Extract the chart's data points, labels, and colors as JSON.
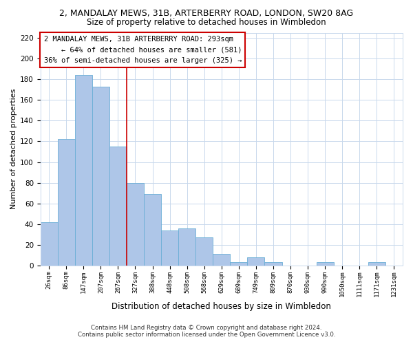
{
  "title": "2, MANDALAY MEWS, 31B, ARTERBERRY ROAD, LONDON, SW20 8AG",
  "subtitle": "Size of property relative to detached houses in Wimbledon",
  "xlabel": "Distribution of detached houses by size in Wimbledon",
  "ylabel": "Number of detached properties",
  "bar_labels": [
    "26sqm",
    "86sqm",
    "147sqm",
    "207sqm",
    "267sqm",
    "327sqm",
    "388sqm",
    "448sqm",
    "508sqm",
    "568sqm",
    "629sqm",
    "689sqm",
    "749sqm",
    "809sqm",
    "870sqm",
    "930sqm",
    "990sqm",
    "1050sqm",
    "1111sqm",
    "1171sqm",
    "1231sqm"
  ],
  "bar_values": [
    42,
    122,
    184,
    173,
    115,
    80,
    69,
    34,
    36,
    27,
    11,
    3,
    8,
    3,
    0,
    0,
    3,
    0,
    0,
    3,
    0
  ],
  "bar_color": "#aec6e8",
  "bar_edge_color": "#6aaed6",
  "reference_line_x": 4.5,
  "reference_line_color": "#cc0000",
  "ylim": [
    0,
    225
  ],
  "yticks": [
    0,
    20,
    40,
    60,
    80,
    100,
    120,
    140,
    160,
    180,
    200,
    220
  ],
  "annotation_line1": "2 MANDALAY MEWS, 31B ARTERBERRY ROAD: 293sqm",
  "annotation_line2": "← 64% of detached houses are smaller (581)",
  "annotation_line3": "36% of semi-detached houses are larger (325) →",
  "annotation_box_color": "#ffffff",
  "annotation_box_edge": "#cc0000",
  "footer_line1": "Contains HM Land Registry data © Crown copyright and database right 2024.",
  "footer_line2": "Contains public sector information licensed under the Open Government Licence v3.0.",
  "title_fontsize": 9,
  "subtitle_fontsize": 8.5,
  "background_color": "#ffffff",
  "grid_color": "#c8d8ec"
}
